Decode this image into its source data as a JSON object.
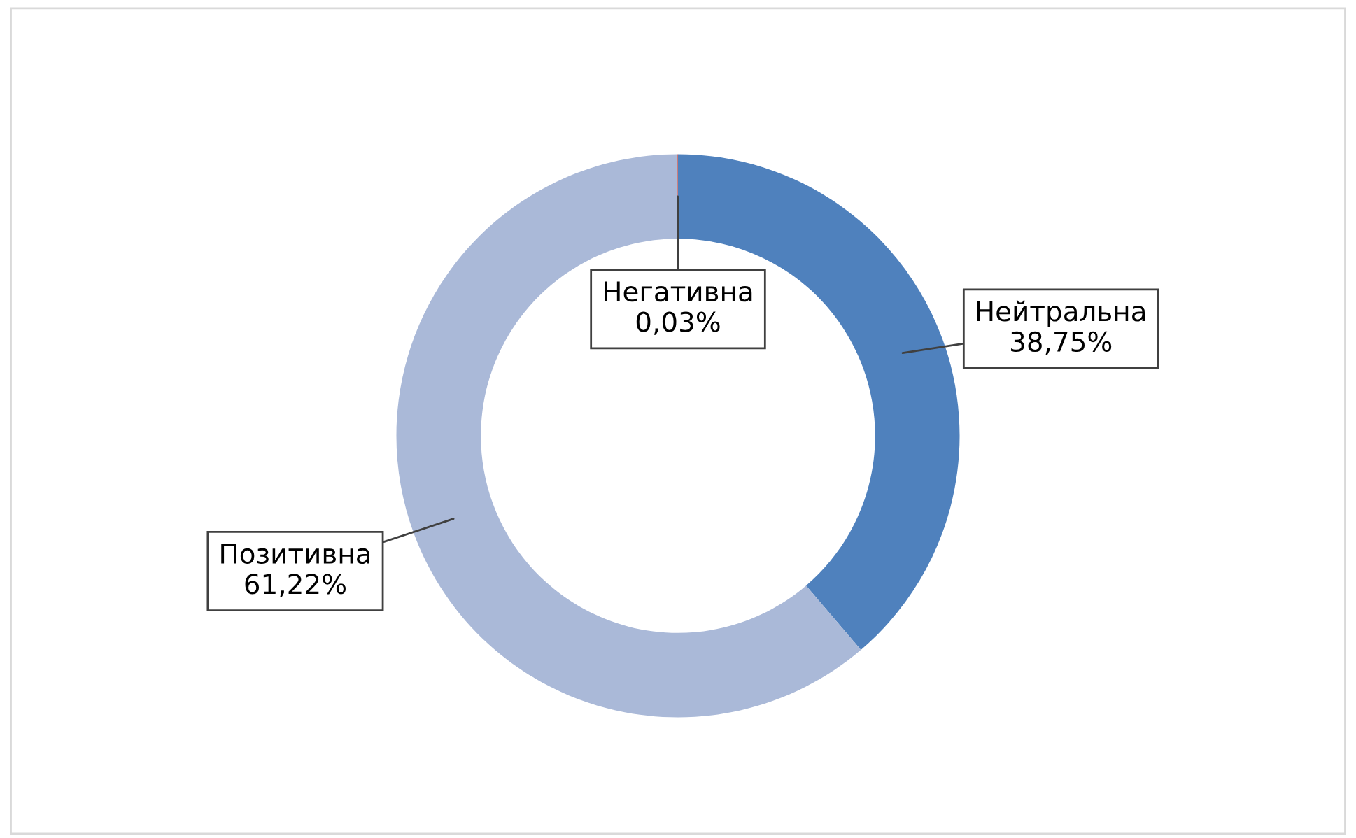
{
  "chart_data": {
    "type": "donut",
    "categories": [
      "Нейтральна",
      "Позитивна",
      "Негативна"
    ],
    "values": [
      38.75,
      61.22,
      0.03
    ],
    "colors": [
      "#4f81bd",
      "#aab9d8",
      "#c0504d"
    ],
    "value_labels": [
      "38,75%",
      "61,22%",
      "0,03%"
    ],
    "legend": false
  }
}
